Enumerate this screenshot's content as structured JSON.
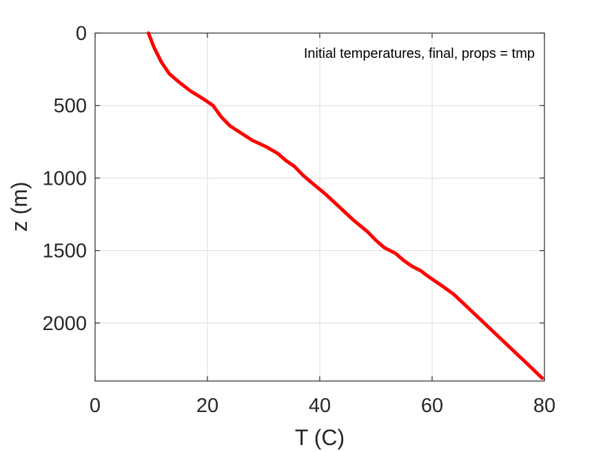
{
  "chart_data": {
    "type": "line",
    "title": "",
    "xlabel": "T (C)",
    "ylabel": "z (m)",
    "xlim": [
      0,
      80
    ],
    "ylim": [
      0,
      2400
    ],
    "y_reversed": true,
    "grid": true,
    "x_ticks": [
      0,
      20,
      40,
      60,
      80
    ],
    "y_ticks": [
      0,
      500,
      1000,
      1500,
      2000
    ],
    "x_tick_labels": [
      "0",
      "20",
      "40",
      "60",
      "80"
    ],
    "y_tick_labels": [
      "0",
      "500",
      "1000",
      "1500",
      "2000"
    ],
    "annotation": "Initial temperatures, final, props = tmp",
    "annotation_position": "top-right",
    "series": [
      {
        "color": "#ff0000",
        "x": [
          9.5,
          10.5,
          11.8,
          13.2,
          15.0,
          17.0,
          19.5,
          21.0,
          22.5,
          24.0,
          26.0,
          28.0,
          30.5,
          32.5,
          34.0,
          35.5,
          37.0,
          38.5,
          41.0,
          43.5,
          46.0,
          48.5,
          50.0,
          51.5,
          53.5,
          55.0,
          56.5,
          58.0,
          59.0,
          60.5,
          62.0,
          63.8,
          66.0,
          69.0,
          72.0,
          75.0,
          78.0,
          79.6
        ],
        "y": [
          0,
          100,
          200,
          280,
          340,
          400,
          460,
          500,
          580,
          640,
          690,
          740,
          785,
          830,
          880,
          920,
          980,
          1030,
          1110,
          1200,
          1290,
          1370,
          1430,
          1480,
          1520,
          1570,
          1610,
          1640,
          1670,
          1710,
          1750,
          1800,
          1880,
          1990,
          2100,
          2210,
          2320,
          2380
        ]
      }
    ]
  }
}
